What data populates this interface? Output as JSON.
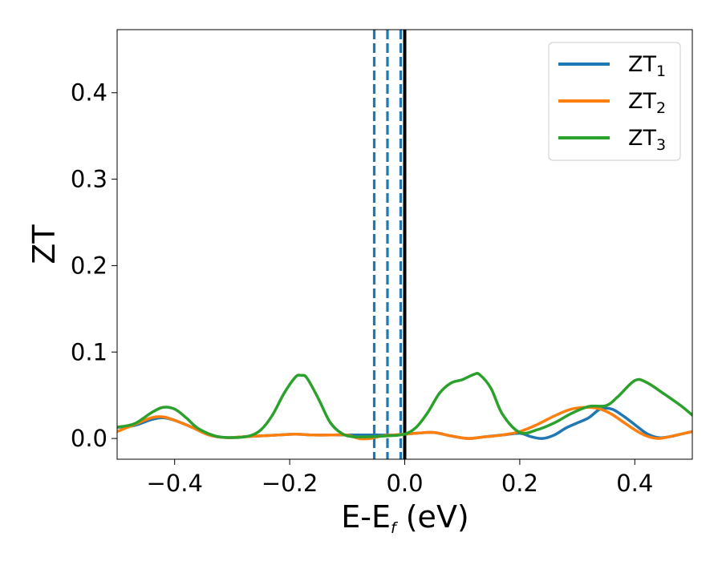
{
  "chart_data": {
    "type": "line",
    "xlabel": "E-E",
    "xlabel_sub": "f",
    "xlabel_unit": " (eV)",
    "ylabel": "ZT",
    "xlim": [
      -0.5,
      0.5
    ],
    "ylim": [
      -0.024,
      0.473
    ],
    "xticks": [
      -0.4,
      -0.2,
      0.0,
      0.2,
      0.4
    ],
    "xtick_labels": [
      "−0.4",
      "−0.2",
      "0.0",
      "0.2",
      "0.4"
    ],
    "yticks": [
      0.0,
      0.1,
      0.2,
      0.3,
      0.4
    ],
    "ytick_labels": [
      "0.0",
      "0.1",
      "0.2",
      "0.3",
      "0.4"
    ],
    "grid": false,
    "legend": "upper-right",
    "vlines": [
      {
        "x": -0.053,
        "color": "#1f77b4",
        "style": "dashed"
      },
      {
        "x": -0.03,
        "color": "#1f77b4",
        "style": "dashed"
      },
      {
        "x": -0.007,
        "color": "#1f77b4",
        "style": "dashed"
      },
      {
        "x": 0.0,
        "color": "#000000",
        "style": "solid"
      }
    ],
    "series": [
      {
        "name": "ZT",
        "sub": "1",
        "color": "#1f77b4",
        "x": [
          -0.5,
          -0.47,
          -0.44,
          -0.42,
          -0.4,
          -0.37,
          -0.34,
          -0.31,
          -0.28,
          -0.25,
          -0.22,
          -0.19,
          -0.16,
          -0.13,
          -0.1,
          -0.07,
          -0.04,
          -0.02,
          0.0,
          0.02,
          0.05,
          0.08,
          0.11,
          0.14,
          0.17,
          0.2,
          0.22,
          0.24,
          0.26,
          0.28,
          0.3,
          0.32,
          0.34,
          0.36,
          0.38,
          0.4,
          0.42,
          0.44,
          0.46,
          0.48,
          0.5
        ],
        "y": [
          0.013,
          0.015,
          0.022,
          0.024,
          0.021,
          0.013,
          0.004,
          0.001,
          0.002,
          0.003,
          0.004,
          0.005,
          0.004,
          0.004,
          0.004,
          0.004,
          0.004,
          0.004,
          0.005,
          0.006,
          0.007,
          0.003,
          0.0,
          0.002,
          0.004,
          0.006,
          0.002,
          0.0,
          0.004,
          0.012,
          0.018,
          0.024,
          0.034,
          0.034,
          0.026,
          0.016,
          0.006,
          0.001,
          0.002,
          0.005,
          0.008
        ]
      },
      {
        "name": "ZT",
        "sub": "2",
        "color": "#ff7f0e",
        "x": [
          -0.5,
          -0.47,
          -0.44,
          -0.42,
          -0.4,
          -0.37,
          -0.34,
          -0.31,
          -0.28,
          -0.25,
          -0.22,
          -0.19,
          -0.16,
          -0.13,
          -0.1,
          -0.08,
          -0.06,
          -0.04,
          -0.02,
          0.0,
          0.02,
          0.05,
          0.08,
          0.11,
          0.14,
          0.17,
          0.2,
          0.23,
          0.26,
          0.29,
          0.32,
          0.34,
          0.36,
          0.38,
          0.4,
          0.42,
          0.44,
          0.46,
          0.48,
          0.5
        ],
        "y": [
          0.008,
          0.016,
          0.024,
          0.025,
          0.021,
          0.013,
          0.004,
          0.001,
          0.002,
          0.003,
          0.004,
          0.005,
          0.004,
          0.004,
          0.004,
          0.0,
          0.0,
          0.003,
          0.004,
          0.005,
          0.006,
          0.007,
          0.003,
          0.0,
          0.002,
          0.004,
          0.008,
          0.016,
          0.026,
          0.034,
          0.036,
          0.034,
          0.028,
          0.019,
          0.01,
          0.003,
          0.0,
          0.002,
          0.005,
          0.008
        ]
      },
      {
        "name": "ZT",
        "sub": "3",
        "color": "#2ca02c",
        "x": [
          -0.5,
          -0.47,
          -0.44,
          -0.42,
          -0.4,
          -0.38,
          -0.36,
          -0.33,
          -0.3,
          -0.27,
          -0.25,
          -0.23,
          -0.21,
          -0.19,
          -0.18,
          -0.17,
          -0.15,
          -0.13,
          -0.11,
          -0.09,
          -0.06,
          -0.03,
          0.0,
          0.02,
          0.04,
          0.06,
          0.08,
          0.1,
          0.12,
          0.13,
          0.15,
          0.17,
          0.2,
          0.23,
          0.26,
          0.29,
          0.32,
          0.35,
          0.37,
          0.4,
          0.42,
          0.45,
          0.48,
          0.5
        ],
        "y": [
          0.013,
          0.017,
          0.03,
          0.036,
          0.034,
          0.024,
          0.012,
          0.003,
          0.001,
          0.003,
          0.01,
          0.027,
          0.052,
          0.071,
          0.073,
          0.07,
          0.046,
          0.019,
          0.006,
          0.002,
          0.002,
          0.003,
          0.005,
          0.013,
          0.03,
          0.052,
          0.064,
          0.068,
          0.074,
          0.074,
          0.058,
          0.028,
          0.007,
          0.01,
          0.018,
          0.029,
          0.037,
          0.038,
          0.048,
          0.067,
          0.065,
          0.052,
          0.038,
          0.027
        ]
      }
    ]
  }
}
